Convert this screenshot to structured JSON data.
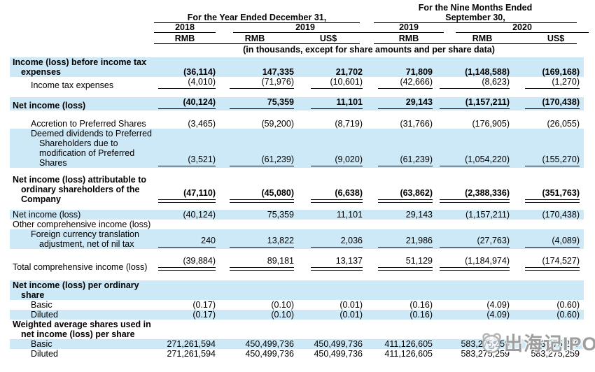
{
  "colors": {
    "highlight": "#cde8f6",
    "rule": "#000000",
    "watermark": "#919191"
  },
  "header": {
    "group_year": {
      "title": "For the Year Ended December 31,"
    },
    "group_nine_months": {
      "title_line1": "For the Nine Months Ended",
      "title_line2": "September 30,"
    },
    "year_cols": {
      "g1": [
        {
          "label": "2018"
        },
        {
          "label": "2019"
        }
      ],
      "g2": [
        {
          "label": "2019"
        },
        {
          "label": "2020"
        }
      ]
    },
    "currency_labels": {
      "rmb": "RMB",
      "usd": "US$"
    },
    "units_note": "(in thousands, except for share amounts and per share data)"
  },
  "table": {
    "rows": [
      {
        "label_lines": [
          {
            "text": "Income (loss) before income tax",
            "indent": 0
          },
          {
            "text": "expenses",
            "indent": 1
          }
        ],
        "bold": true,
        "values_bold": true,
        "highlight": true,
        "rule": "none",
        "gap_after": 0,
        "values": [
          "(36,114)",
          "147,335",
          "21,702",
          "71,809",
          "(1,148,588)",
          "(169,168)"
        ]
      },
      {
        "label_lines": [
          {
            "text": "Income tax expenses",
            "indent": 2
          }
        ],
        "bold": false,
        "values_bold": false,
        "highlight": false,
        "rule": "single",
        "gap_after": 10,
        "values": [
          "(4,010)",
          "(71,976)",
          "(10,601)",
          "(42,666)",
          "(8,623)",
          "(1,270)"
        ]
      },
      {
        "label_lines": [
          {
            "text": "Net income (loss)",
            "indent": 0
          }
        ],
        "bold": true,
        "values_bold": true,
        "highlight": true,
        "rule": "single",
        "gap_after": 12,
        "values": [
          "(40,124)",
          "75,359",
          "11,101",
          "29,143",
          "(1,157,211)",
          "(170,438)"
        ]
      },
      {
        "label_lines": [
          {
            "text": "Accretion to Preferred Shares",
            "indent": 2
          }
        ],
        "bold": false,
        "values_bold": false,
        "highlight": false,
        "rule": "none",
        "gap_after": 0,
        "values": [
          "(3,465)",
          "(59,200)",
          "(8,719)",
          "(31,766)",
          "(176,905)",
          "(26,055)"
        ]
      },
      {
        "label_lines": [
          {
            "text": "Deemed dividends to Preferred",
            "indent": 2
          },
          {
            "text": "Shareholders due to",
            "indent": 3
          },
          {
            "text": "modification of Preferred",
            "indent": 3
          },
          {
            "text": "Shares",
            "indent": 3
          }
        ],
        "bold": false,
        "values_bold": false,
        "highlight": true,
        "rule": "single",
        "gap_after": 10,
        "values": [
          "(3,521)",
          "(61,239)",
          "(9,020)",
          "(61,239)",
          "(1,054,220)",
          "(155,270)"
        ]
      },
      {
        "label_lines": [
          {
            "text": "Net income (loss) attributable to",
            "indent": 0
          },
          {
            "text": "ordinary shareholders of the",
            "indent": 1
          },
          {
            "text": "Company",
            "indent": 1
          }
        ],
        "bold": true,
        "values_bold": true,
        "highlight": false,
        "rule": "double",
        "gap_after": 8,
        "values": [
          "(47,110)",
          "(45,080)",
          "(6,638)",
          "(63,862)",
          "(2,388,336)",
          "(351,763)"
        ]
      },
      {
        "label_lines": [
          {
            "text": "Net income (loss)",
            "indent": 0
          }
        ],
        "bold": false,
        "values_bold": false,
        "highlight": true,
        "rule": "none",
        "gap_after": 0,
        "values": [
          "(40,124)",
          "75,359",
          "11,101",
          "29,143",
          "(1,157,211)",
          "(170,438)"
        ]
      },
      {
        "label_lines": [
          {
            "text": "Other comprehensive income (loss)",
            "indent": 0
          }
        ],
        "bold": false,
        "values_bold": false,
        "highlight": false,
        "rule": "none",
        "gap_after": 0,
        "values": null
      },
      {
        "label_lines": [
          {
            "text": "Foreign currency translation",
            "indent": 2
          },
          {
            "text": "adjustment, net of nil tax",
            "indent": 3
          }
        ],
        "bold": false,
        "values_bold": false,
        "highlight": true,
        "rule": "single",
        "gap_after": 10,
        "values": [
          "240",
          "13,822",
          "2,036",
          "21,986",
          "(27,763)",
          "(4,089)"
        ]
      },
      {
        "label_lines": [
          {
            "text": "Total comprehensive income (loss)",
            "indent": 0
          }
        ],
        "bold": false,
        "values_bold": false,
        "highlight": false,
        "rule": "double",
        "gap_after": 12,
        "values": [
          "(39,884)",
          "89,181",
          "13,137",
          "51,129",
          "(1,184,974)",
          "(174,527)"
        ]
      },
      {
        "label_lines": [
          {
            "text": "Net income (loss) per ordinary",
            "indent": 0
          },
          {
            "text": "share",
            "indent": 1
          }
        ],
        "bold": true,
        "values_bold": false,
        "highlight": true,
        "rule": "none",
        "gap_after": 0,
        "values": null
      },
      {
        "label_lines": [
          {
            "text": "Basic",
            "indent": 2
          }
        ],
        "bold": false,
        "values_bold": false,
        "highlight": false,
        "rule": "none",
        "gap_after": 0,
        "values": [
          "(0.17)",
          "(0.10)",
          "(0.01)",
          "(0.16)",
          "(4.09)",
          "(0.60)"
        ]
      },
      {
        "label_lines": [
          {
            "text": "Diluted",
            "indent": 2
          }
        ],
        "bold": false,
        "values_bold": false,
        "highlight": true,
        "rule": "none",
        "gap_after": 0,
        "values": [
          "(0.17)",
          "(0.10)",
          "(0.01)",
          "(0.16)",
          "(4.09)",
          "(0.60)"
        ]
      },
      {
        "label_lines": [
          {
            "text": "Weighted average shares used in",
            "indent": 0
          },
          {
            "text": "net income (loss) per share",
            "indent": 1
          }
        ],
        "bold": true,
        "values_bold": false,
        "highlight": false,
        "rule": "none",
        "gap_after": 0,
        "values": null
      },
      {
        "label_lines": [
          {
            "text": "Basic",
            "indent": 2
          }
        ],
        "bold": false,
        "values_bold": false,
        "highlight": true,
        "rule": "none",
        "gap_after": 0,
        "values": [
          "271,261,594",
          "450,499,736",
          "450,499,736",
          "411,126,605",
          "583,275,259",
          "583,275,259"
        ]
      },
      {
        "label_lines": [
          {
            "text": "Diluted",
            "indent": 2
          }
        ],
        "bold": false,
        "values_bold": false,
        "highlight": false,
        "rule": "none",
        "gap_after": 0,
        "values": [
          "271,261,594",
          "450,499,736",
          "450,499,736",
          "411,126,605",
          "583,275,259",
          "583,275,259"
        ]
      }
    ]
  },
  "watermark": {
    "text": "出海记IPO",
    "logo": "panda-face-icon"
  }
}
